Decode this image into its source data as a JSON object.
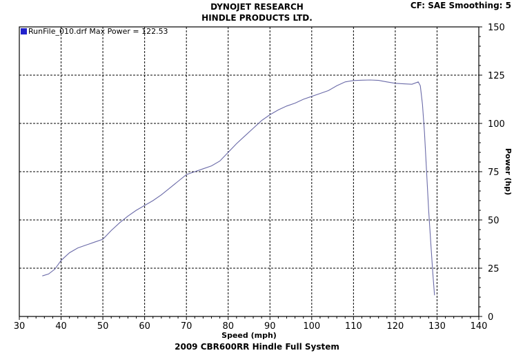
{
  "header": {
    "line1": "DYNOJET RESEARCH",
    "line2": "HINDLE PRODUCTS LTD.",
    "settings": "CF: SAE  Smoothing: 5"
  },
  "footer": {
    "title": "2009 CBR600RR Hindle Full System"
  },
  "colors": {
    "series": "#6a6aa8",
    "legend_swatch": "#2222cc",
    "grid": "#000000"
  },
  "chart_data": {
    "type": "line",
    "xlabel": "Speed (mph)",
    "ylabel": "Power (hp)",
    "xlim": [
      30,
      140
    ],
    "ylim": [
      0,
      150
    ],
    "x_ticks": [
      30,
      40,
      50,
      60,
      70,
      80,
      90,
      100,
      110,
      120,
      130,
      140
    ],
    "y_ticks": [
      0,
      25,
      50,
      75,
      100,
      125,
      150
    ],
    "grid": true,
    "y_axis_side": "right",
    "legend": {
      "position": "top-left",
      "label": "RunFile_010.drf Max Power = 122.53"
    },
    "series": [
      {
        "name": "RunFile_010.drf",
        "x": [
          35.5,
          37,
          38.5,
          40,
          42,
          44,
          46,
          48,
          50,
          52,
          54,
          56,
          58,
          60,
          62,
          64,
          66,
          68,
          70,
          72,
          74,
          76,
          78,
          80,
          82,
          84,
          86,
          88,
          90,
          92,
          94,
          96,
          98,
          100,
          102,
          104,
          106,
          108,
          110,
          112,
          114,
          116,
          118,
          120,
          122,
          124,
          125.5,
          126,
          126.5,
          127,
          127.5,
          128,
          128.5,
          129,
          129.4
        ],
        "y": [
          21,
          22,
          24.5,
          29,
          33,
          35.5,
          37,
          38.5,
          40,
          44.5,
          48.5,
          52,
          55,
          57.5,
          60,
          63,
          66.5,
          70,
          73.5,
          75,
          76.5,
          78,
          80.5,
          85,
          89.5,
          93.5,
          97.5,
          101.5,
          104.5,
          107,
          109,
          110.5,
          112.5,
          114,
          115.5,
          117,
          119.5,
          121.5,
          122.2,
          122.4,
          122.5,
          122.3,
          121.5,
          120.8,
          120.5,
          120.3,
          121.5,
          119.5,
          110,
          95,
          75,
          55,
          38,
          22,
          11
        ]
      }
    ]
  }
}
